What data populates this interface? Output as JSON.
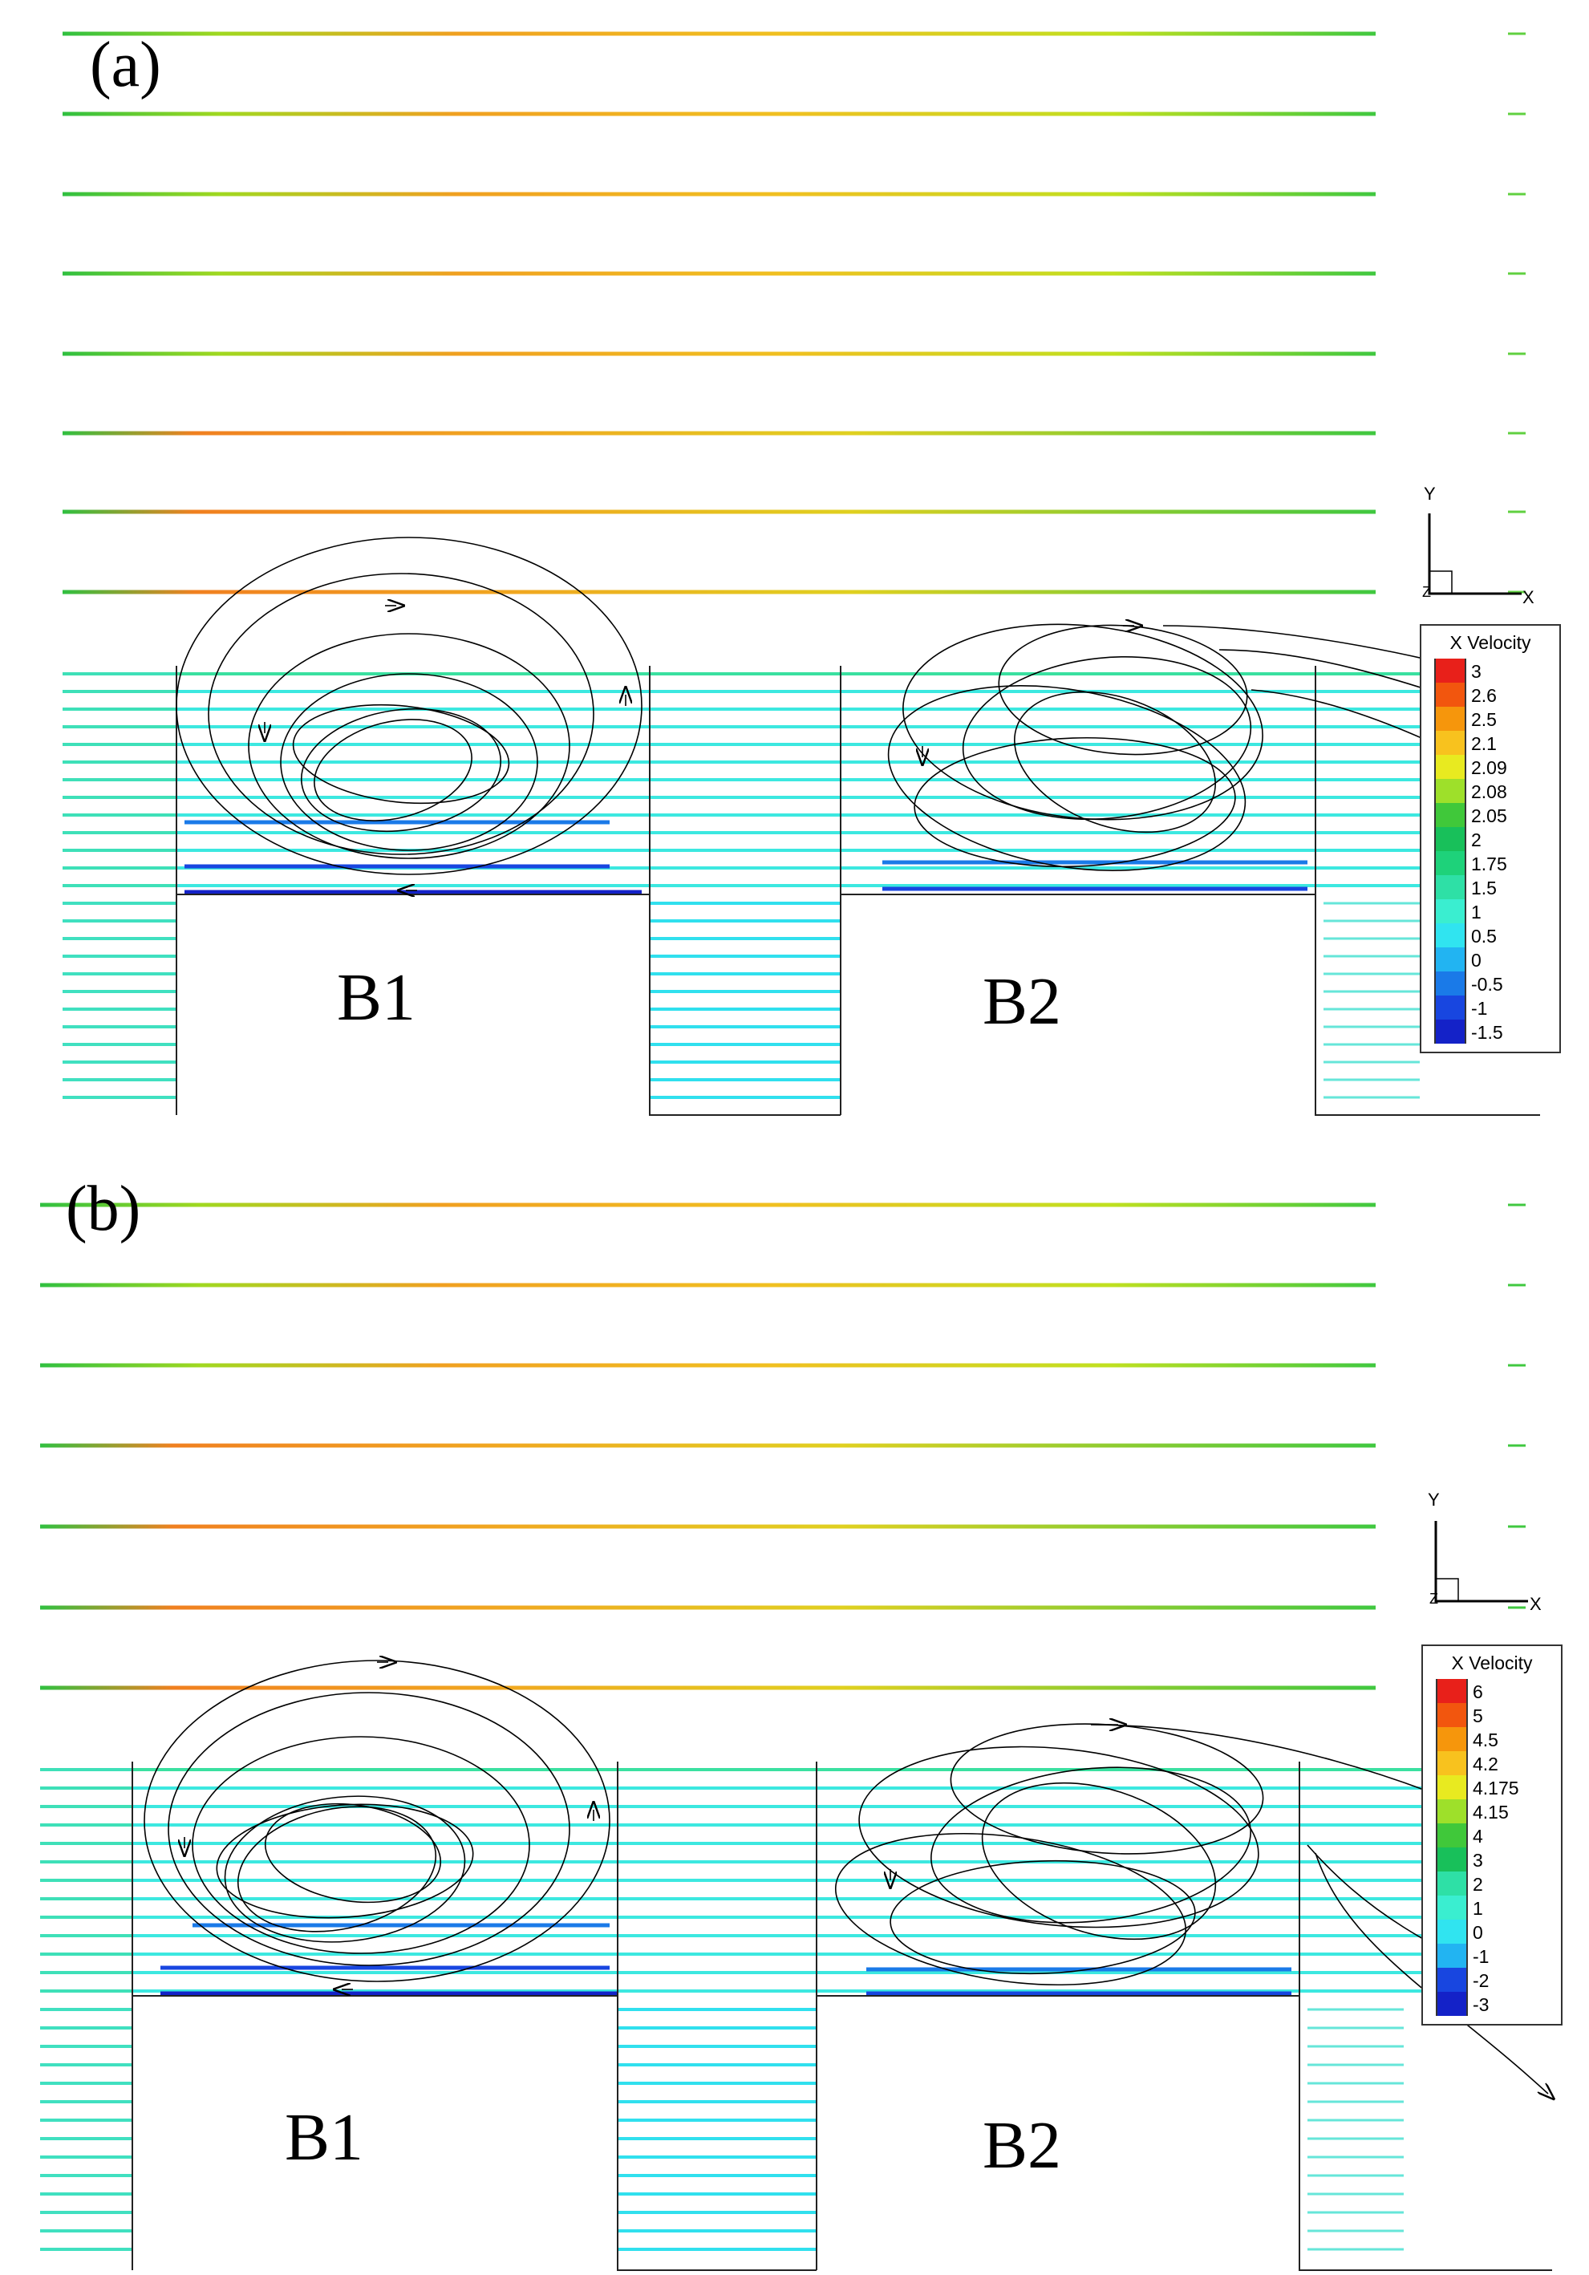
{
  "panels": [
    {
      "label": "(a)",
      "buildings": [
        "B1",
        "B2"
      ],
      "axes": {
        "x": "X",
        "y": "Y",
        "z": "Z"
      },
      "legend": {
        "title": "X Velocity",
        "levels": [
          {
            "value": "3",
            "color": "#e8201a"
          },
          {
            "value": "2.6",
            "color": "#f2560e"
          },
          {
            "value": "2.5",
            "color": "#f6960c"
          },
          {
            "value": "2.1",
            "color": "#f8c21e"
          },
          {
            "value": "2.09",
            "color": "#e8ea20"
          },
          {
            "value": "2.08",
            "color": "#9ee02a"
          },
          {
            "value": "2.05",
            "color": "#40c83a"
          },
          {
            "value": "2",
            "color": "#18c05a"
          },
          {
            "value": "1.75",
            "color": "#1ed27a"
          },
          {
            "value": "1.5",
            "color": "#2ee0a6"
          },
          {
            "value": "1",
            "color": "#3aeed0"
          },
          {
            "value": "0.5",
            "color": "#30e4f0"
          },
          {
            "value": "0",
            "color": "#22b4f2"
          },
          {
            "value": "-0.5",
            "color": "#1a7ae8"
          },
          {
            "value": "-1",
            "color": "#1846e0"
          },
          {
            "value": "-1.5",
            "color": "#1422c8"
          }
        ]
      }
    },
    {
      "label": "(b)",
      "buildings": [
        "B1",
        "B2"
      ],
      "axes": {
        "x": "X",
        "y": "Y",
        "z": "Z"
      },
      "legend": {
        "title": "X Velocity",
        "levels": [
          {
            "value": "6",
            "color": "#e8201a"
          },
          {
            "value": "5",
            "color": "#f2560e"
          },
          {
            "value": "4.5",
            "color": "#f6960c"
          },
          {
            "value": "4.2",
            "color": "#f8c21e"
          },
          {
            "value": "4.175",
            "color": "#e8ea20"
          },
          {
            "value": "4.15",
            "color": "#9ee02a"
          },
          {
            "value": "4",
            "color": "#40c83a"
          },
          {
            "value": "3",
            "color": "#18c05a"
          },
          {
            "value": "2",
            "color": "#2ee0a6"
          },
          {
            "value": "1",
            "color": "#3aeed0"
          },
          {
            "value": "0",
            "color": "#30e4f0"
          },
          {
            "value": "-1",
            "color": "#22b4f2"
          },
          {
            "value": "-2",
            "color": "#1846e0"
          },
          {
            "value": "-3",
            "color": "#1422c8"
          }
        ]
      }
    }
  ]
}
